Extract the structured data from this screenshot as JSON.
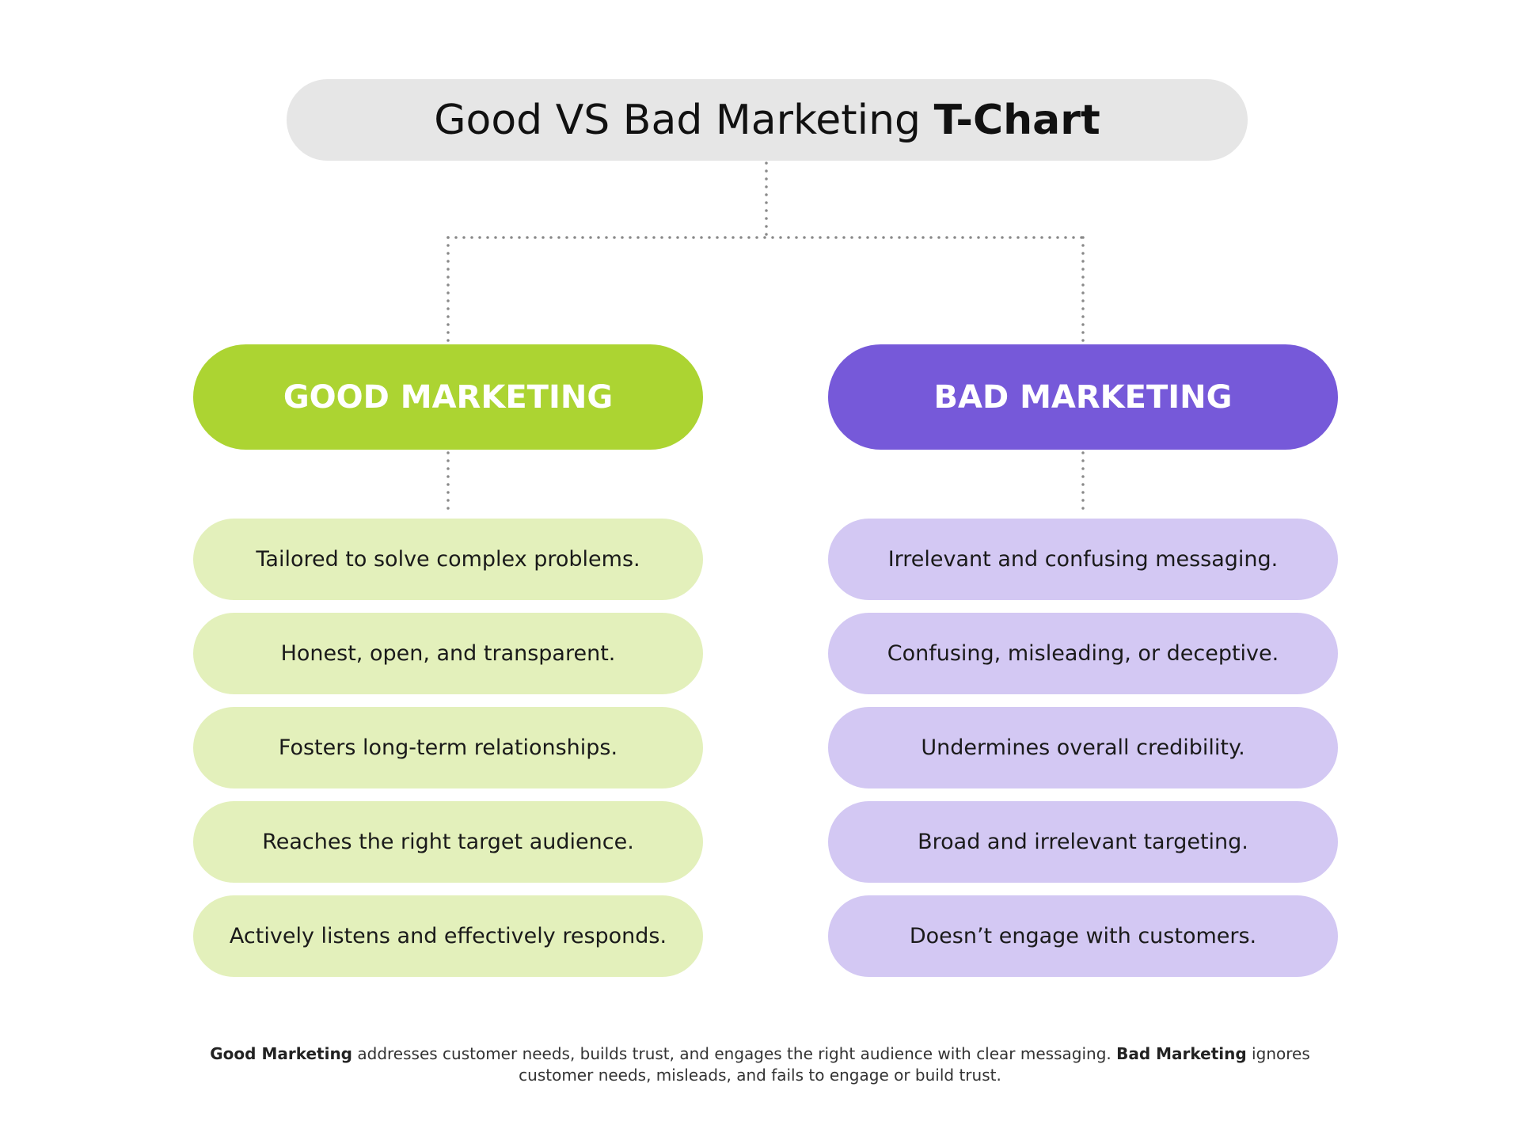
{
  "title": {
    "regular": "Good VS Bad Marketing",
    "bold": "T-Chart"
  },
  "colors": {
    "good_header": "#acd432",
    "good_item": "#e3f0bb",
    "bad_header": "#7659d9",
    "bad_item": "#d3c8f3",
    "title_bg": "#e6e6e6",
    "connector": "#8a8a8a"
  },
  "good": {
    "header": "GOOD MARKETING",
    "items": [
      "Tailored to solve complex problems.",
      "Honest, open, and transparent.",
      "Fosters long-term relationships.",
      "Reaches the right target audience.",
      "Actively listens and effectively responds."
    ]
  },
  "bad": {
    "header": "BAD MARKETING",
    "items": [
      "Irrelevant and confusing messaging.",
      "Confusing, misleading, or deceptive.",
      "Undermines overall credibility.",
      "Broad and irrelevant targeting.",
      "Doesn’t engage with customers."
    ]
  },
  "footer": {
    "good_label": "Good Marketing",
    "good_text": " addresses customer needs, builds trust, and engages the right audience with clear messaging. ",
    "bad_label": "Bad Marketing",
    "bad_text": " ignores customer needs, misleads, and fails to engage or build trust."
  }
}
